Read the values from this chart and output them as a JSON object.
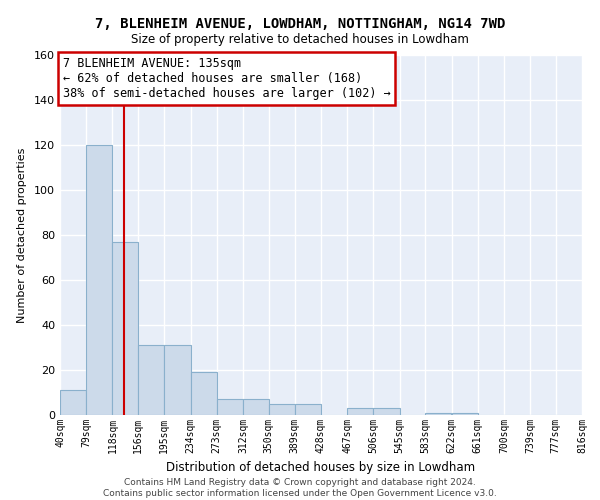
{
  "title": "7, BLENHEIM AVENUE, LOWDHAM, NOTTINGHAM, NG14 7WD",
  "subtitle": "Size of property relative to detached houses in Lowdham",
  "xlabel": "Distribution of detached houses by size in Lowdham",
  "ylabel": "Number of detached properties",
  "bin_edges": [
    40,
    79,
    118,
    156,
    195,
    234,
    273,
    312,
    350,
    389,
    428,
    467,
    506,
    545,
    583,
    622,
    661,
    700,
    739,
    777,
    816
  ],
  "bar_heights": [
    11,
    120,
    77,
    31,
    31,
    19,
    7,
    7,
    5,
    5,
    0,
    3,
    3,
    0,
    1,
    1,
    0,
    0,
    0,
    0
  ],
  "bar_color": "#ccdaea",
  "bar_edgecolor": "#8ab0cc",
  "property_line_x": 135,
  "property_line_color": "#cc0000",
  "annotation_text": "7 BLENHEIM AVENUE: 135sqm\n← 62% of detached houses are smaller (168)\n38% of semi-detached houses are larger (102) →",
  "annotation_box_color": "#ffffff",
  "annotation_box_edgecolor": "#cc0000",
  "ylim": [
    0,
    160
  ],
  "yticks": [
    0,
    20,
    40,
    60,
    80,
    100,
    120,
    140,
    160
  ],
  "footer_text": "Contains HM Land Registry data © Crown copyright and database right 2024.\nContains public sector information licensed under the Open Government Licence v3.0.",
  "background_color": "#e8eef8",
  "grid_color": "#ffffff",
  "tick_labels": [
    "40sqm",
    "79sqm",
    "118sqm",
    "156sqm",
    "195sqm",
    "234sqm",
    "273sqm",
    "312sqm",
    "350sqm",
    "389sqm",
    "428sqm",
    "467sqm",
    "506sqm",
    "545sqm",
    "583sqm",
    "622sqm",
    "661sqm",
    "700sqm",
    "739sqm",
    "777sqm",
    "816sqm"
  ]
}
